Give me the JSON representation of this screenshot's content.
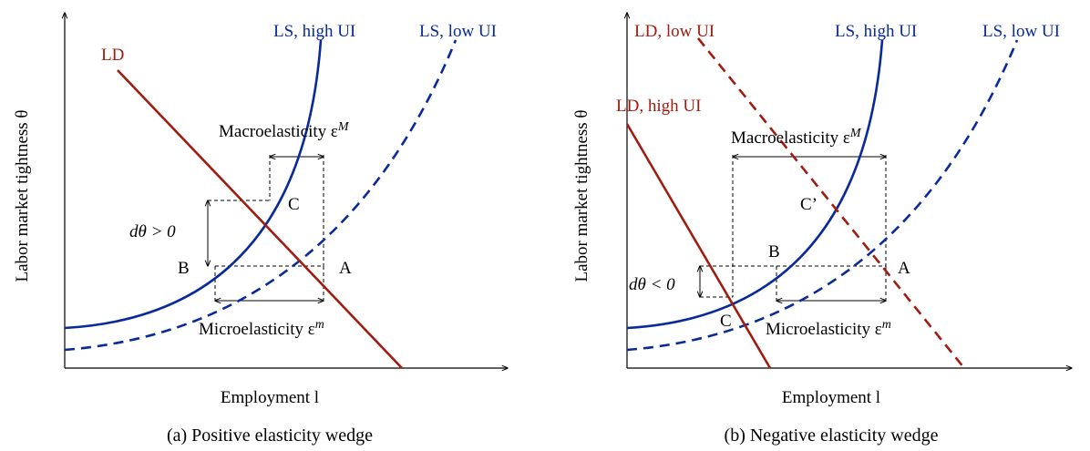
{
  "colors": {
    "ld": "#a01c10",
    "ls": "#0a2a9a",
    "guide": "#000000"
  },
  "panel_a": {
    "caption": "(a)  Positive elasticity wedge",
    "y_axis_label": "Labor market tightness θ",
    "x_axis_label": "Employment l",
    "ld_label": "LD",
    "ls_high_label": "LS, high UI",
    "ls_low_label": "LS, low UI",
    "macro_label": "Macroelasticity ε",
    "macro_sup": "M",
    "micro_label": "Microelasticity ε",
    "micro_sup": "m",
    "dtheta_label": "dθ > 0",
    "point_a": "A",
    "point_b": "B",
    "point_c": "C"
  },
  "panel_b": {
    "caption": "(b)  Negative elasticity wedge",
    "y_axis_label": "Labor market tightness θ",
    "x_axis_label": "Employment l",
    "ld_low_label": "LD, low UI",
    "ld_high_label": "LD, high UI",
    "ls_high_label": "LS, high UI",
    "ls_low_label": "LS, low UI",
    "macro_label": "Macroelasticity ε",
    "macro_sup": "M",
    "micro_label": "Microelasticity ε",
    "micro_sup": "m",
    "dtheta_label": "dθ < 0",
    "point_a": "A",
    "point_b": "B",
    "point_c": "C",
    "point_c_prime": "C’"
  }
}
